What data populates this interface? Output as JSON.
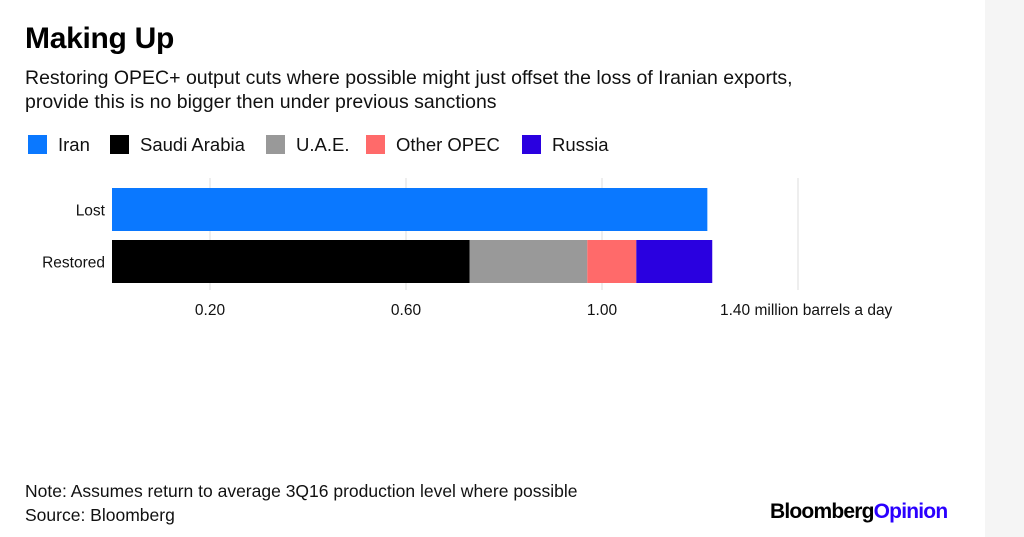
{
  "title": "Making Up",
  "subtitle_lines": [
    "Restoring OPEC+ output cuts where possible might just offset the loss of Iranian exports,",
    "provide this is no bigger then under previous sanctions"
  ],
  "footer": {
    "note": "Note: Assumes return to average 3Q16 production level where possible",
    "source": "Source: Bloomberg",
    "logo_brand": "Bloomberg",
    "logo_suffix": "Opinion"
  },
  "colors": {
    "Iran": "#0a78ff",
    "Saudi Arabia": "#000000",
    "U.A.E.": "#999999",
    "Other OPEC": "#ff6a6a",
    "Russia": "#2a00e0"
  },
  "chart_data": {
    "type": "bar",
    "orientation": "horizontal",
    "stacked": true,
    "categories": [
      "Lost",
      "Restored"
    ],
    "series": [
      {
        "name": "Iran",
        "values": [
          1.215,
          0
        ]
      },
      {
        "name": "Saudi Arabia",
        "values": [
          0,
          0.73
        ]
      },
      {
        "name": "U.A.E.",
        "values": [
          0,
          0.24
        ]
      },
      {
        "name": "Other OPEC",
        "values": [
          0,
          0.1
        ]
      },
      {
        "name": "Russia",
        "values": [
          0,
          0.155
        ]
      }
    ],
    "xlim": [
      0,
      1.4
    ],
    "xticks": [
      0.2,
      0.6,
      1.0,
      1.4
    ],
    "xtick_labels": [
      "0.20",
      "0.60",
      "1.00",
      "1.40 million barrels a day"
    ],
    "xlabel": "",
    "ylabel": "",
    "legend_position": "top"
  }
}
